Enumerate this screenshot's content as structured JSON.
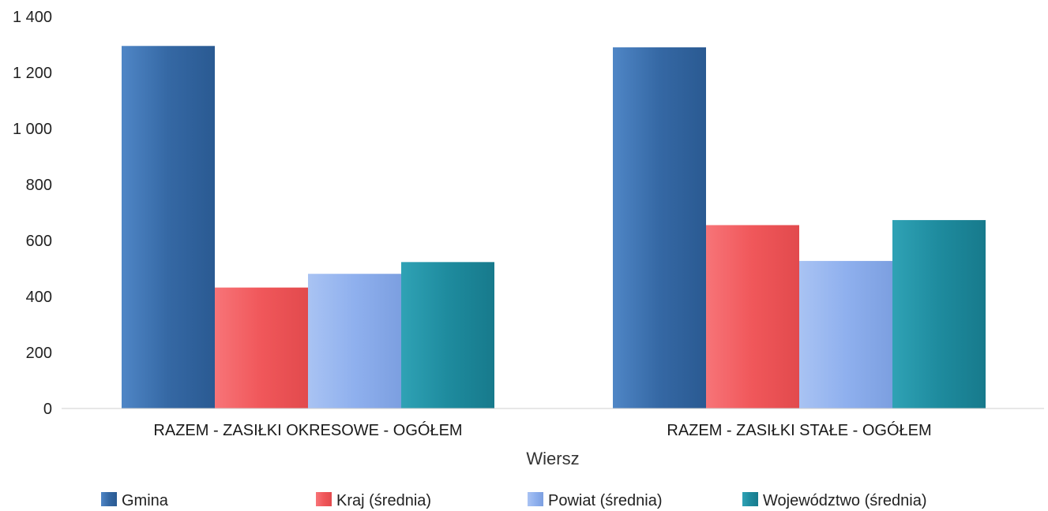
{
  "chart_data": {
    "type": "bar",
    "xlabel": "Wiersz",
    "ylabel": "",
    "ylim": [
      0,
      1400
    ],
    "yticks": [
      0,
      200,
      400,
      600,
      800,
      1000,
      1200,
      1400
    ],
    "ytick_labels": [
      "0",
      "200",
      "400",
      "600",
      "800",
      "1 000",
      "1 200",
      "1 400"
    ],
    "categories": [
      "RAZEM -  ZASIŁKI OKRESOWE - OGÓŁEM",
      "RAZEM -  ZASIŁKI STAŁE - OGÓŁEM"
    ],
    "series": [
      {
        "name": "Gmina",
        "values": [
          1295,
          1290
        ],
        "color": "#3568a4"
      },
      {
        "name": "Kraj (średnia)",
        "values": [
          432,
          655
        ],
        "color": "#f0575a"
      },
      {
        "name": "Powiat (średnia)",
        "values": [
          481,
          527
        ],
        "color": "#8fb0ee"
      },
      {
        "name": "Województwo (średnia)",
        "values": [
          523,
          673
        ],
        "color": "#1e8b9e"
      }
    ],
    "legend_position": "bottom",
    "grid": false
  }
}
